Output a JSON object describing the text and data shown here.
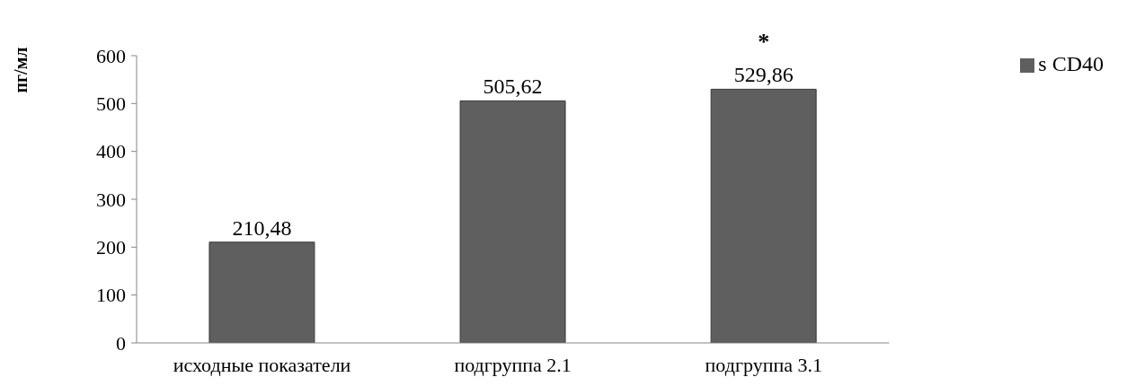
{
  "chart_data": {
    "type": "bar",
    "ylabel": "пг/мл",
    "categories": [
      "исходные показатели",
      "подгруппа 2.1",
      "подгруппа 3.1"
    ],
    "series": [
      {
        "name": "s CD40",
        "color": "#5f5f5f",
        "values": [
          210.48,
          505.62,
          529.86
        ],
        "value_labels": [
          "210,48",
          "505,62",
          "529,86"
        ]
      }
    ],
    "ylim": [
      0,
      600
    ],
    "yticks": [
      0,
      100,
      200,
      300,
      400,
      500,
      600
    ],
    "legend": "top right",
    "annotations": [
      "*"
    ]
  }
}
